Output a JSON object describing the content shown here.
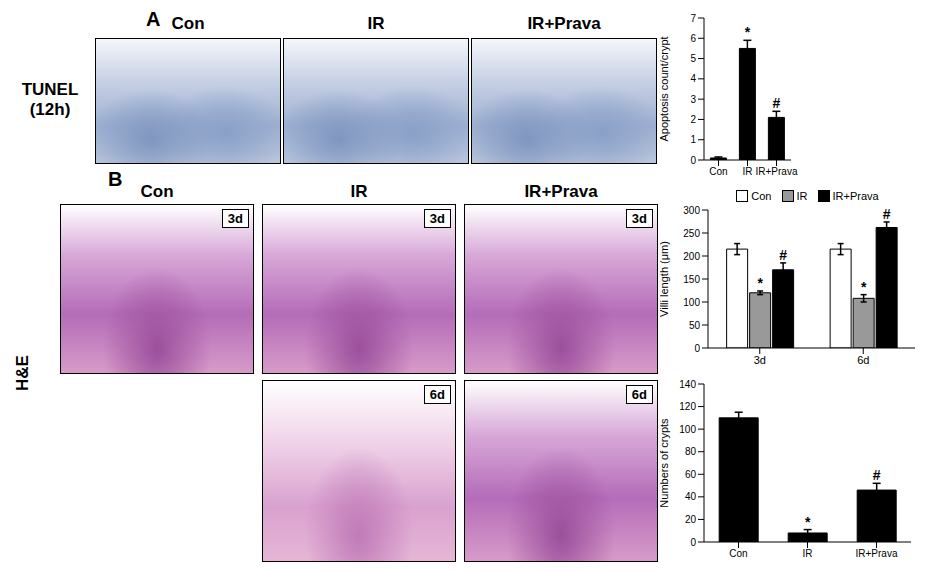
{
  "figure": {
    "panel_a": {
      "letter": "A",
      "row_label": [
        "TUNEL",
        "(12h)"
      ],
      "columns": [
        "Con",
        "IR",
        "IR+Prava"
      ]
    },
    "panel_b": {
      "letter": "B",
      "row_label": "H&E",
      "columns": [
        "Con",
        "IR",
        "IR+Prava"
      ],
      "images": [
        [
          "3d",
          "3d",
          "3d"
        ],
        [
          null,
          "6d",
          "6d"
        ]
      ]
    }
  },
  "chart_data": [
    {
      "type": "bar",
      "ylabel": "Apoptosis count/crypt",
      "categories": [
        "Con",
        "IR",
        "IR+Prava"
      ],
      "values": [
        0.1,
        5.5,
        2.1
      ],
      "errors": [
        0.05,
        0.4,
        0.3
      ],
      "annotations": [
        null,
        "*",
        "#"
      ],
      "color": "#000000",
      "ylim": [
        0,
        7
      ],
      "yticks": [
        0,
        1,
        2,
        3,
        4,
        5,
        6,
        7
      ]
    },
    {
      "type": "bar",
      "ylabel": "Villi length (μm)",
      "categories": [
        "3d",
        "6d"
      ],
      "series": [
        {
          "name": "Con",
          "color": "#ffffff",
          "values": [
            215,
            215
          ],
          "errors": [
            12,
            12
          ],
          "annotations": [
            null,
            null
          ]
        },
        {
          "name": "IR",
          "color": "#999999",
          "values": [
            120,
            108
          ],
          "errors": [
            4,
            8
          ],
          "annotations": [
            "*",
            "*"
          ]
        },
        {
          "name": "IR+Prava",
          "color": "#000000",
          "values": [
            170,
            262
          ],
          "errors": [
            15,
            12
          ],
          "annotations": [
            "#",
            "#"
          ]
        }
      ],
      "ylim": [
        0,
        300
      ],
      "yticks": [
        0,
        50,
        100,
        150,
        200,
        250,
        300
      ],
      "legend": "top"
    },
    {
      "type": "bar",
      "ylabel": "Numbers of crypts",
      "categories": [
        "Con",
        "IR",
        "IR+Prava"
      ],
      "values": [
        110,
        8,
        46
      ],
      "errors": [
        5,
        3,
        6
      ],
      "annotations": [
        null,
        "*",
        "#"
      ],
      "color": "#000000",
      "ylim": [
        0,
        140
      ],
      "yticks": [
        0,
        20,
        40,
        60,
        80,
        100,
        120,
        140
      ]
    }
  ]
}
